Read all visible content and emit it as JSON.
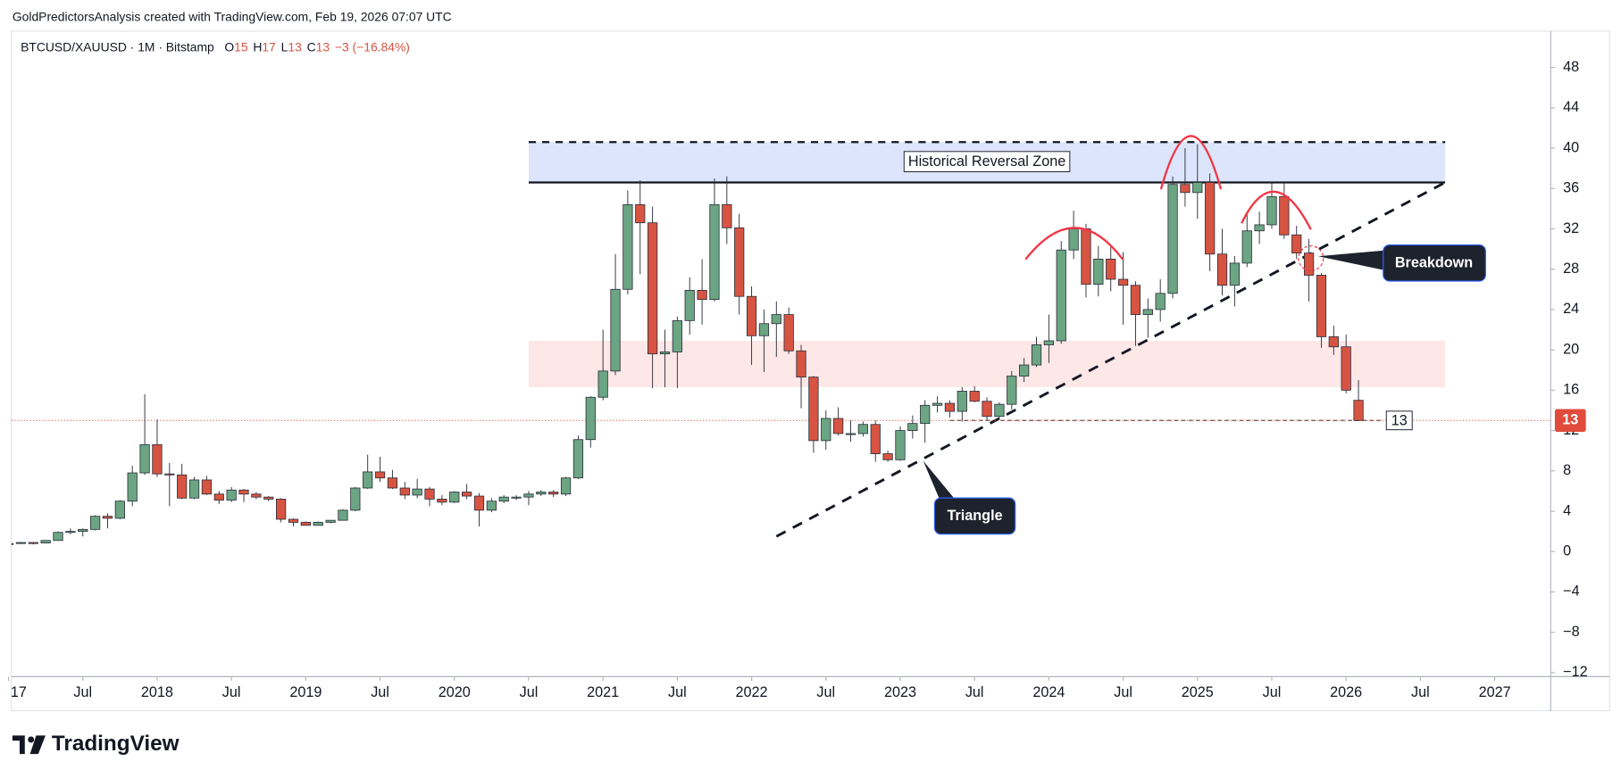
{
  "header": {
    "title": "GoldPredictorsAnalysis created with TradingView.com, Feb 19, 2026 07:07 UTC",
    "symbol": "BTCUSD/XAUUSD · 1M · Bitstamp",
    "ohlc_keys": [
      "O",
      "H",
      "L",
      "C"
    ],
    "change": "−3 (−16.84%)"
  },
  "logo": "TradingView",
  "chart_data": {
    "type": "candlestick",
    "x": [
      "2017-01",
      "2017-02",
      "2017-03",
      "2017-04",
      "2017-05",
      "2017-06",
      "2017-07",
      "2017-08",
      "2017-09",
      "2017-10",
      "2017-11",
      "2017-12",
      "2018-01",
      "2018-02",
      "2018-03",
      "2018-04",
      "2018-05",
      "2018-06",
      "2018-07",
      "2018-08",
      "2018-09",
      "2018-10",
      "2018-11",
      "2018-12",
      "2019-01",
      "2019-02",
      "2019-03",
      "2019-04",
      "2019-05",
      "2019-06",
      "2019-07",
      "2019-08",
      "2019-09",
      "2019-10",
      "2019-11",
      "2019-12",
      "2020-01",
      "2020-02",
      "2020-03",
      "2020-04",
      "2020-05",
      "2020-06",
      "2020-07",
      "2020-08",
      "2020-09",
      "2020-10",
      "2020-11",
      "2020-12",
      "2021-01",
      "2021-02",
      "2021-03",
      "2021-04",
      "2021-05",
      "2021-06",
      "2021-07",
      "2021-08",
      "2021-09",
      "2021-10",
      "2021-11",
      "2021-12",
      "2022-01",
      "2022-02",
      "2022-03",
      "2022-04",
      "2022-05",
      "2022-06",
      "2022-07",
      "2022-08",
      "2022-09",
      "2022-10",
      "2022-11",
      "2022-12",
      "2023-01",
      "2023-02",
      "2023-03",
      "2023-04",
      "2023-05",
      "2023-06",
      "2023-07",
      "2023-08",
      "2023-09",
      "2023-10",
      "2023-11",
      "2023-12",
      "2024-01",
      "2024-02",
      "2024-03",
      "2024-04",
      "2024-05",
      "2024-06",
      "2024-07",
      "2024-08",
      "2024-09",
      "2024-10",
      "2024-11",
      "2024-12",
      "2025-01",
      "2025-02",
      "2025-03",
      "2025-04",
      "2025-05",
      "2025-06",
      "2025-07",
      "2025-08",
      "2025-09",
      "2025-10",
      "2025-11",
      "2025-12",
      "2026-01",
      "2026-02"
    ],
    "series": [
      {
        "name": "BTCUSD/XAUUSD",
        "up_color": "#6ba583",
        "down_color": "#d75442",
        "open": [
          0.8,
          0.8,
          0.9,
          0.85,
          1.1,
          1.9,
          2.0,
          2.2,
          3.5,
          3.3,
          5.0,
          7.8,
          10.6,
          7.7,
          7.6,
          5.3,
          7.1,
          5.7,
          5.1,
          6.1,
          5.7,
          5.4,
          5.2,
          3.2,
          2.9,
          2.6,
          2.9,
          3.1,
          4.1,
          6.3,
          7.9,
          7.3,
          6.3,
          5.6,
          6.2,
          5.2,
          4.9,
          5.9,
          5.5,
          4.1,
          5.0,
          5.4,
          5.4,
          5.7,
          5.9,
          5.7,
          7.3,
          11.1,
          15.3,
          17.9,
          26.0,
          34.4,
          32.6,
          19.6,
          19.8,
          22.9,
          25.9,
          25.0,
          34.4,
          32.1,
          25.3,
          21.4,
          22.6,
          23.5,
          19.9,
          17.3,
          11.0,
          13.2,
          11.7,
          11.7,
          12.6,
          9.7,
          9.1,
          12.0,
          12.7,
          14.5,
          14.7,
          13.9,
          15.9,
          14.9,
          13.4,
          14.6,
          17.4,
          18.5,
          20.5,
          20.9,
          29.9,
          32.0,
          26.5,
          29.0,
          27.0,
          26.4,
          23.5,
          24.0,
          25.6,
          36.4,
          35.6,
          36.6,
          29.5,
          26.4,
          28.6,
          31.8,
          32.4,
          35.2,
          31.4,
          29.6,
          27.4,
          21.3,
          20.3,
          15
        ],
        "high": [
          0.9,
          0.95,
          0.95,
          1.1,
          2.0,
          2.3,
          2.3,
          3.6,
          3.8,
          5.1,
          8.5,
          15.6,
          13.1,
          8.8,
          8.7,
          7.4,
          7.5,
          6.0,
          6.4,
          6.2,
          5.9,
          5.5,
          5.3,
          3.3,
          3.0,
          3.0,
          3.1,
          4.2,
          6.4,
          9.6,
          9.4,
          8.1,
          6.9,
          7.2,
          6.4,
          5.6,
          6.0,
          6.7,
          5.8,
          5.3,
          5.6,
          5.6,
          6.0,
          6.1,
          6.1,
          7.4,
          11.5,
          15.4,
          22.0,
          29.5,
          35.8,
          36.8,
          34.2,
          22.0,
          23.3,
          27.2,
          29.0,
          37.0,
          37.2,
          33.5,
          26.3,
          24.0,
          24.8,
          24.2,
          20.5,
          17.4,
          14.0,
          14.3,
          13.0,
          12.9,
          13.0,
          10.0,
          12.4,
          13.5,
          15.0,
          15.4,
          15.0,
          16.3,
          16.4,
          15.3,
          14.8,
          17.9,
          19.2,
          21.3,
          23.5,
          30.8,
          33.8,
          32.5,
          30.3,
          30.2,
          29.7,
          26.8,
          25.1,
          27.0,
          37.2,
          40.0,
          40.4,
          37.5,
          32.0,
          29.3,
          33.5,
          33.7,
          36.7,
          36.5,
          32.3,
          31.0,
          27.6,
          22.4,
          21.5,
          17
        ],
        "low": [
          0.7,
          0.75,
          0.7,
          0.8,
          1.1,
          1.7,
          1.5,
          2.1,
          2.3,
          3.2,
          4.5,
          7.6,
          7.4,
          4.5,
          5.2,
          5.2,
          5.6,
          4.7,
          4.9,
          4.9,
          5.2,
          5.0,
          2.9,
          2.5,
          2.6,
          2.6,
          2.8,
          3.1,
          4.0,
          6.2,
          6.9,
          6.2,
          5.2,
          5.3,
          4.5,
          4.6,
          4.8,
          5.2,
          2.5,
          3.9,
          4.8,
          5.1,
          4.6,
          5.5,
          5.4,
          5.5,
          7.2,
          10.3,
          15.0,
          17.5,
          25.5,
          27.5,
          16.2,
          16.3,
          16.2,
          21.5,
          22.5,
          24.8,
          30.5,
          23.5,
          18.5,
          17.8,
          19.3,
          19.6,
          14.2,
          9.8,
          10.1,
          11.5,
          10.9,
          11.4,
          8.9,
          8.9,
          9.0,
          11.2,
          10.8,
          13.8,
          13.3,
          12.9,
          14.8,
          13.0,
          13.1,
          14.1,
          16.8,
          18.3,
          18.7,
          20.6,
          29.0,
          25.2,
          25.3,
          25.8,
          22.5,
          20.4,
          21.2,
          22.8,
          25.1,
          34.2,
          33.0,
          27.8,
          25.4,
          24.3,
          28.2,
          30.5,
          32.0,
          31.0,
          29.0,
          24.8,
          20.2,
          19.5,
          15.7,
          13
        ],
        "close": [
          0.8,
          0.9,
          0.85,
          1.1,
          1.9,
          2.0,
          2.2,
          3.5,
          3.3,
          5.0,
          7.8,
          10.6,
          7.7,
          7.6,
          5.3,
          7.1,
          5.7,
          5.1,
          6.1,
          5.7,
          5.4,
          5.2,
          3.2,
          2.9,
          2.6,
          2.9,
          3.1,
          4.1,
          6.3,
          7.9,
          7.3,
          6.3,
          5.6,
          6.2,
          5.2,
          4.9,
          5.9,
          5.5,
          4.1,
          5.0,
          5.4,
          5.4,
          5.7,
          5.9,
          5.7,
          7.3,
          11.1,
          15.3,
          17.9,
          26.0,
          34.4,
          32.6,
          19.6,
          19.8,
          22.9,
          25.9,
          25.0,
          34.4,
          32.1,
          25.3,
          21.4,
          22.6,
          23.5,
          19.9,
          17.3,
          11.0,
          13.2,
          11.7,
          11.7,
          12.6,
          9.7,
          9.1,
          12.0,
          12.7,
          14.5,
          14.7,
          13.9,
          15.9,
          14.9,
          13.4,
          14.6,
          17.4,
          18.5,
          20.5,
          20.9,
          29.9,
          32.0,
          26.5,
          29.0,
          27.0,
          26.4,
          23.5,
          24.0,
          25.6,
          36.4,
          35.6,
          36.6,
          29.5,
          26.4,
          28.6,
          31.8,
          32.4,
          35.2,
          31.4,
          29.6,
          27.4,
          21.3,
          20.3,
          16.0,
          13
        ]
      }
    ],
    "ylim": [
      -12.4,
      51.6
    ],
    "yticks": [
      48,
      44,
      40,
      36,
      32,
      28,
      24,
      20,
      16,
      12,
      8,
      4,
      0,
      {
        "value": -4,
        "label": "−4"
      },
      {
        "value": -8,
        "label": "−8"
      },
      {
        "value": -12,
        "label": "−12"
      }
    ],
    "xticks": [
      {
        "value": "2017-01",
        "label": "17"
      },
      {
        "value": "2017-07",
        "label": "Jul"
      },
      {
        "value": "2018-01",
        "label": "2018"
      },
      {
        "value": "2018-07",
        "label": "Jul"
      },
      {
        "value": "2019-01",
        "label": "2019"
      },
      {
        "value": "2019-07",
        "label": "Jul"
      },
      {
        "value": "2020-01",
        "label": "2020"
      },
      {
        "value": "2020-07",
        "label": "Jul"
      },
      {
        "value": "2021-01",
        "label": "2021"
      },
      {
        "value": "2021-07",
        "label": "Jul"
      },
      {
        "value": "2022-01",
        "label": "2022"
      },
      {
        "value": "2022-07",
        "label": "Jul"
      },
      {
        "value": "2023-01",
        "label": "2023"
      },
      {
        "value": "2023-07",
        "label": "Jul"
      },
      {
        "value": "2024-01",
        "label": "2024"
      },
      {
        "value": "2024-07",
        "label": "Jul"
      },
      {
        "value": "2025-01",
        "label": "2025"
      },
      {
        "value": "2025-07",
        "label": "Jul"
      },
      {
        "value": "2026-01",
        "label": "2026"
      },
      {
        "value": "2026-07",
        "label": "Jul"
      },
      {
        "value": "2027-01",
        "label": "2027"
      }
    ],
    "zones": [
      {
        "from": "2020-07",
        "to": "2026-09",
        "ylim": [
          36.6,
          40.6
        ],
        "color": "#dce5fb",
        "label": "Historical Reversal Zone"
      },
      {
        "from": "2020-07",
        "to": "2026-09",
        "ylim": [
          16.3,
          20.9
        ],
        "color": "#fde7e7"
      }
    ],
    "levels": [
      {
        "value": 40.6,
        "from": "2020-07",
        "to": "2026-09",
        "style": "dashed"
      },
      {
        "value": 36.6,
        "from": "2020-07",
        "to": "2026-09",
        "style": "solid"
      },
      {
        "value": 13,
        "from": "2023-05",
        "to": "2026-04",
        "style": "dotted"
      }
    ],
    "trendline": {
      "from": [
        "2022-03",
        1.5
      ],
      "to": [
        "2026-09",
        36.6
      ]
    },
    "annotations": [
      "Breakdown",
      "Triangle"
    ],
    "price_line_color": "#e04b3c"
  }
}
